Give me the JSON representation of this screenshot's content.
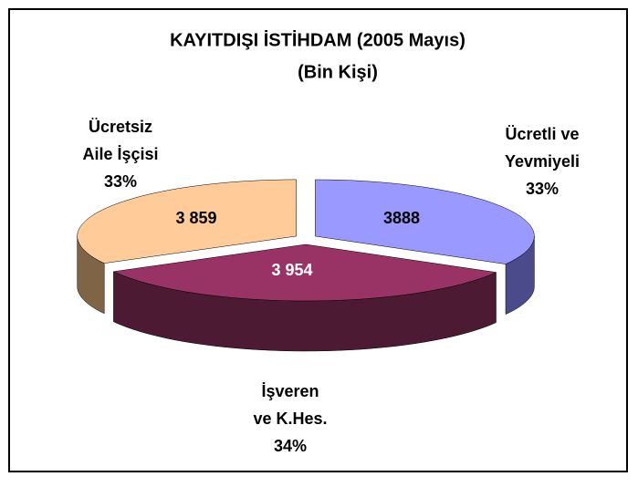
{
  "chart_data": {
    "type": "pie3d",
    "title": "KAYITDIŞI İSTİHDAM (2005 Mayıs)",
    "subtitle": "(Bin Kişi)",
    "categories": [
      [
        "Ücretli ve",
        "Yevmiyeli"
      ],
      [
        "İşveren",
        "ve K.Hes."
      ],
      [
        "Ücretsiz",
        "Aile İşçisi"
      ]
    ],
    "values": [
      3888,
      3954,
      3859
    ],
    "value_labels": [
      "3888",
      "3 954",
      "3 859"
    ],
    "percents": [
      33,
      34,
      33
    ],
    "percent_labels": [
      "33%",
      "34%",
      "33%"
    ],
    "colors": [
      "#9999ff",
      "#993366",
      "#ffcc99"
    ],
    "side_colors": [
      "#4b4b8c",
      "#4d1a33",
      "#7f6546"
    ]
  }
}
